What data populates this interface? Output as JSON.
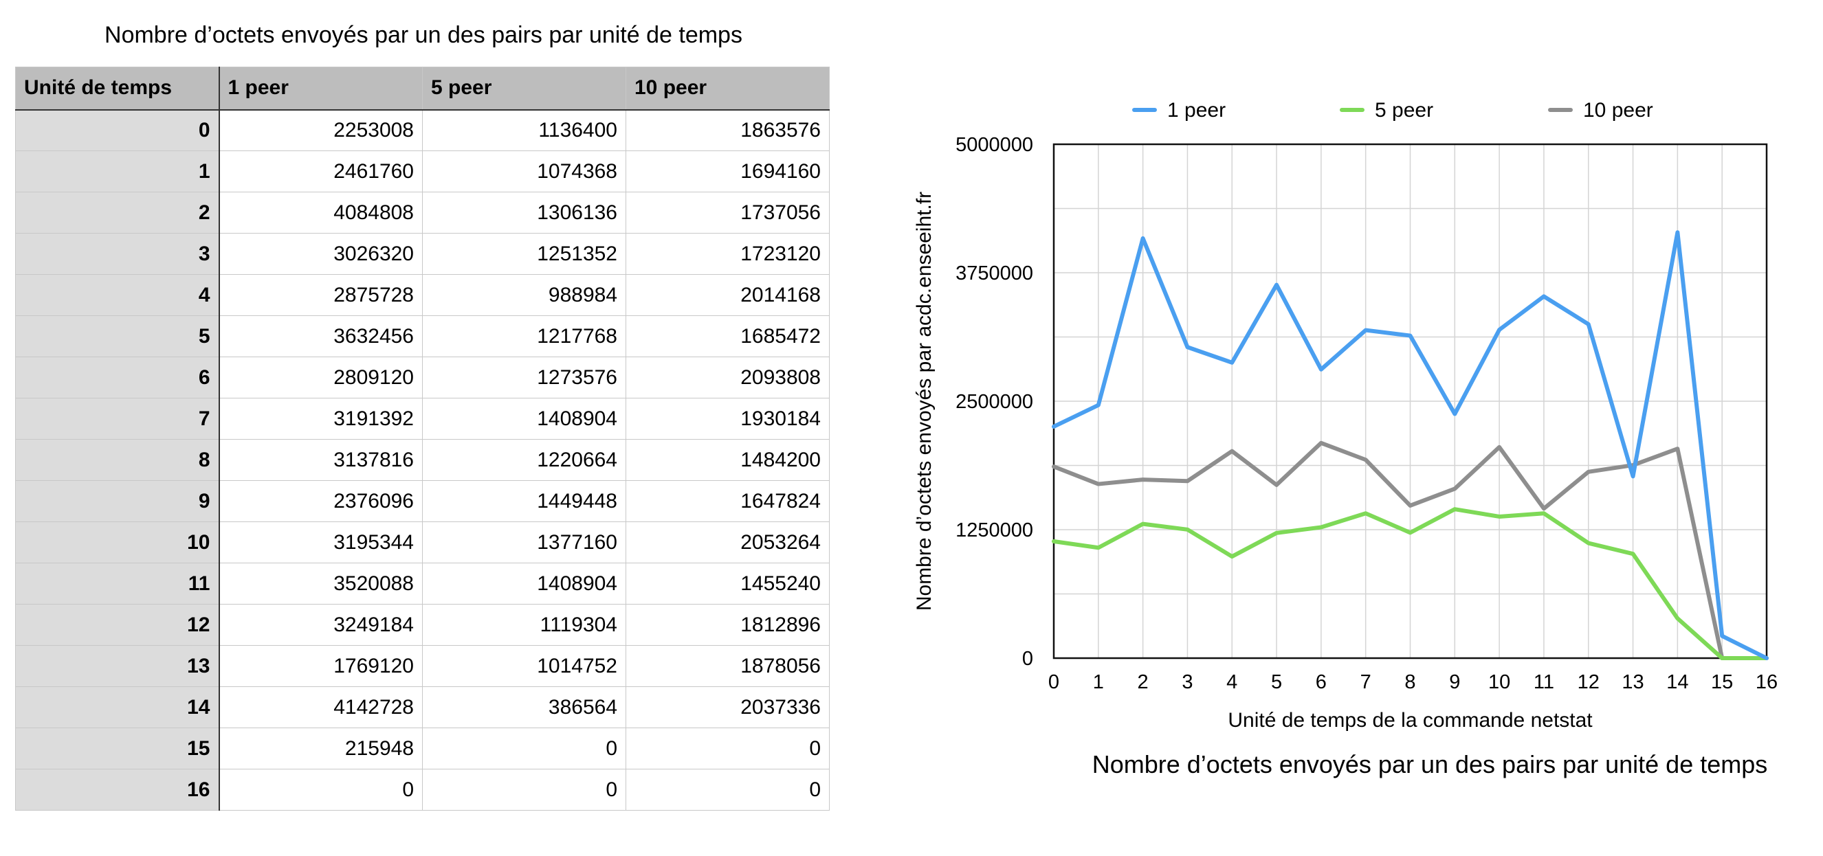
{
  "table": {
    "title": "Nombre d’octets envoyés par un des pairs par unité de temps",
    "headers": [
      "Unité de temps",
      "1 peer",
      "5 peer",
      "10 peer"
    ],
    "rows": [
      [
        "0",
        "2253008",
        "1136400",
        "1863576"
      ],
      [
        "1",
        "2461760",
        "1074368",
        "1694160"
      ],
      [
        "2",
        "4084808",
        "1306136",
        "1737056"
      ],
      [
        "3",
        "3026320",
        "1251352",
        "1723120"
      ],
      [
        "4",
        "2875728",
        "988984",
        "2014168"
      ],
      [
        "5",
        "3632456",
        "1217768",
        "1685472"
      ],
      [
        "6",
        "2809120",
        "1273576",
        "2093808"
      ],
      [
        "7",
        "3191392",
        "1408904",
        "1930184"
      ],
      [
        "8",
        "3137816",
        "1220664",
        "1484200"
      ],
      [
        "9",
        "2376096",
        "1449448",
        "1647824"
      ],
      [
        "10",
        "3195344",
        "1377160",
        "2053264"
      ],
      [
        "11",
        "3520088",
        "1408904",
        "1455240"
      ],
      [
        "12",
        "3249184",
        "1119304",
        "1812896"
      ],
      [
        "13",
        "1769120",
        "1014752",
        "1878056"
      ],
      [
        "14",
        "4142728",
        "386564",
        "2037336"
      ],
      [
        "15",
        "215948",
        "0",
        "0"
      ],
      [
        "16",
        "0",
        "0",
        "0"
      ]
    ]
  },
  "chart_data": {
    "type": "line",
    "title": "Nombre d’octets envoyés par un des pairs par unité de temps",
    "xlabel": "Unité de temps de la commande netstat",
    "ylabel": "Nombre d’octets envoyés par acdc.enseeiht.fr",
    "x": [
      0,
      1,
      2,
      3,
      4,
      5,
      6,
      7,
      8,
      9,
      10,
      11,
      12,
      13,
      14,
      15,
      16
    ],
    "xlim": [
      0,
      16
    ],
    "ylim": [
      0,
      5000000
    ],
    "yticks": [
      0,
      1250000,
      2500000,
      3750000,
      5000000
    ],
    "grid": true,
    "legend": "top",
    "series": [
      {
        "name": "1 peer",
        "color": "#4a9ff0",
        "values": [
          2253008,
          2461760,
          4084808,
          3026320,
          2875728,
          3632456,
          2809120,
          3191392,
          3137816,
          2376096,
          3195344,
          3520088,
          3249184,
          1769120,
          4142728,
          215948,
          0
        ]
      },
      {
        "name": "5 peer",
        "color": "#7ed957",
        "values": [
          1136400,
          1074368,
          1306136,
          1251352,
          988984,
          1217768,
          1273576,
          1408904,
          1220664,
          1449448,
          1377160,
          1408904,
          1119304,
          1014752,
          386564,
          0,
          0
        ]
      },
      {
        "name": "10 peer",
        "color": "#8e8e8e",
        "values": [
          1863576,
          1694160,
          1737056,
          1723120,
          2014168,
          1685472,
          2093808,
          1930184,
          1484200,
          1647824,
          2053264,
          1455240,
          1812896,
          1878056,
          2037336,
          0,
          0
        ]
      }
    ]
  }
}
